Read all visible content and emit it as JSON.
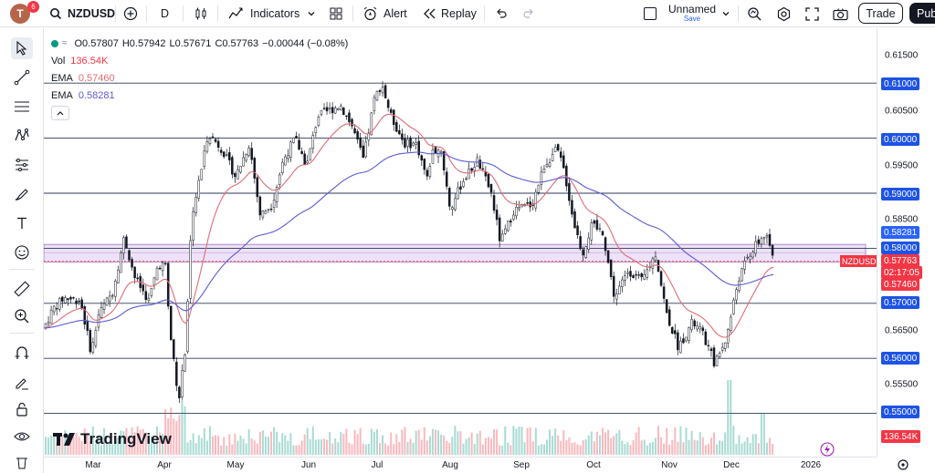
{
  "toolbar": {
    "avatar_letter": "T",
    "notification_count": "6",
    "symbol": "NZDUSD",
    "interval": "D",
    "indicators_label": "Indicators",
    "alert_label": "Alert",
    "replay_label": "Replay",
    "layout_name": "Unnamed",
    "save_label": "Save",
    "trade_label": "Trade",
    "publish_label": "Pub"
  },
  "legend": {
    "ohlc": {
      "open": "O0.57807",
      "high": "H0.57942",
      "low": "L0.57671",
      "close": "C0.57763",
      "change": "−0.00044 (−0.08%)"
    },
    "volume": {
      "label": "Vol",
      "value": "136.54K"
    },
    "ema_fast": {
      "label": "EMA",
      "value": "0.57460",
      "color": "#e06c75"
    },
    "ema_slow": {
      "label": "EMA",
      "value": "0.58281",
      "color": "#5b5bd6"
    }
  },
  "price_scale": {
    "ticks": [
      "0.61500",
      "0.60500",
      "0.59500",
      "0.58500",
      "0.56500",
      "0.55500"
    ],
    "line_labels": [
      "0.61000",
      "0.60000",
      "0.59000",
      "0.58000",
      "0.57000",
      "0.56000",
      "0.55000"
    ],
    "ema_slow_label": "0.58281",
    "last_price": "0.57763",
    "countdown": "02:17:05",
    "ema_fast_label": "0.57460",
    "volume_label": "136.54K"
  },
  "symbol_tag": "NZDUSD",
  "time_axis": [
    "Mar",
    "Apr",
    "May",
    "Jun",
    "Jul",
    "Aug",
    "Sep",
    "Oct",
    "Nov",
    "Dec",
    "2026"
  ],
  "watermark": "TradingView",
  "colors": {
    "up": "#089981",
    "down": "#f23645",
    "candle": "#131722",
    "line": "#2a3a5a",
    "zone": "#c8a0e8",
    "ema_fast": "#e06c75",
    "ema_slow": "#5b5bd6",
    "label_blue": "#2962ff",
    "label_red": "#f23645"
  }
}
